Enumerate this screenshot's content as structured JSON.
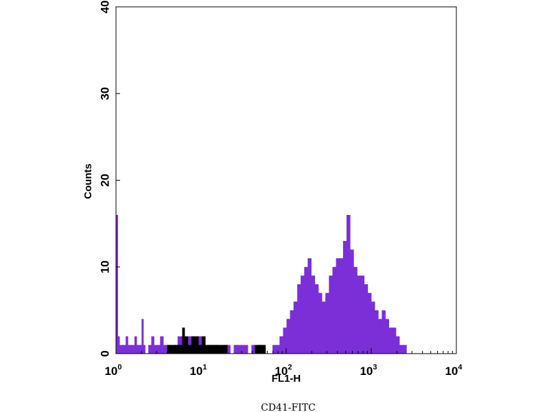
{
  "chart_data": {
    "type": "histogram",
    "xlabel": "FL1-H",
    "ylabel": "Counts",
    "caption": "CD41-FITC",
    "x_scale": "log",
    "xlim": [
      1,
      10000
    ],
    "ylim": [
      0,
      40
    ],
    "x_ticks": [
      {
        "base": "10",
        "exp": "0",
        "value": 1
      },
      {
        "base": "10",
        "exp": "1",
        "value": 10
      },
      {
        "base": "10",
        "exp": "2",
        "value": 100
      },
      {
        "base": "10",
        "exp": "3",
        "value": 1000
      },
      {
        "base": "10",
        "exp": "4",
        "value": 10000
      }
    ],
    "y_ticks": [
      {
        "label": "0",
        "value": 0
      },
      {
        "label": "10",
        "value": 10
      },
      {
        "label": "20",
        "value": 20
      },
      {
        "label": "30",
        "value": 30
      },
      {
        "label": "40",
        "value": 40
      }
    ],
    "grid": false,
    "series": [
      {
        "color": "#7b2fd6",
        "x": [
          1.0,
          1.05,
          1.1,
          1.16,
          1.22,
          1.3,
          1.38,
          1.45,
          1.55,
          1.65,
          1.75,
          1.86,
          2.0,
          2.1,
          2.2,
          2.4,
          2.6,
          2.8,
          3.0,
          3.3,
          3.6,
          4.0,
          4.4,
          4.8,
          5.3,
          5.8,
          6.4,
          7.0,
          7.7,
          8.5,
          9.3,
          10.2,
          11.2,
          12.3,
          13.5,
          15.0,
          16.5,
          18.2,
          20.0,
          22.0,
          24.2,
          26.6,
          29.3,
          32.2,
          35.4,
          39.0,
          42.9,
          47.2,
          51.9,
          57.1,
          62.8,
          69.1,
          76.0,
          83.6,
          92.0,
          101,
          111,
          122,
          135,
          148,
          163,
          179,
          197,
          217,
          239,
          263,
          289,
          318,
          350,
          385,
          423,
          466,
          512,
          564,
          620,
          682,
          750,
          825,
          908,
          999,
          1099,
          1209,
          1330,
          1463,
          1609,
          1770,
          1947,
          2142,
          2356,
          2592,
          2851,
          3136,
          3450,
          3795,
          4174,
          4592,
          5051,
          5556,
          6112
        ],
        "y": [
          16,
          2,
          1,
          1,
          1,
          2,
          1,
          1,
          1,
          2,
          1,
          1,
          4,
          1,
          0,
          1,
          2,
          1,
          1,
          2,
          1,
          1,
          0,
          1,
          2,
          2,
          1,
          2,
          1,
          1,
          2,
          1,
          0,
          1,
          1,
          1,
          0,
          1,
          1,
          0,
          1,
          1,
          1,
          1,
          0,
          1,
          0,
          1,
          0,
          0,
          0,
          1,
          1,
          2,
          3,
          4,
          5,
          6,
          8,
          9,
          10,
          11,
          9,
          8,
          7,
          6,
          7,
          9,
          10,
          11,
          11,
          13,
          16,
          12,
          10,
          9,
          9,
          8,
          7,
          6,
          5,
          4,
          5,
          4,
          3,
          3,
          2,
          1,
          1,
          0,
          0,
          0,
          0,
          0,
          0,
          0,
          0,
          0,
          0
        ]
      },
      {
        "color": "#000000",
        "x": [
          4.0,
          5.3,
          6.0,
          6.4,
          7.0,
          7.7,
          8.5,
          9.3,
          10.2,
          11.2,
          12.3,
          13.5,
          15.0,
          42.9,
          47.2,
          51.9
        ],
        "y": [
          1,
          1,
          3,
          2,
          1,
          2,
          2,
          1,
          2,
          1,
          1,
          1,
          1,
          1,
          1,
          1
        ]
      }
    ]
  }
}
